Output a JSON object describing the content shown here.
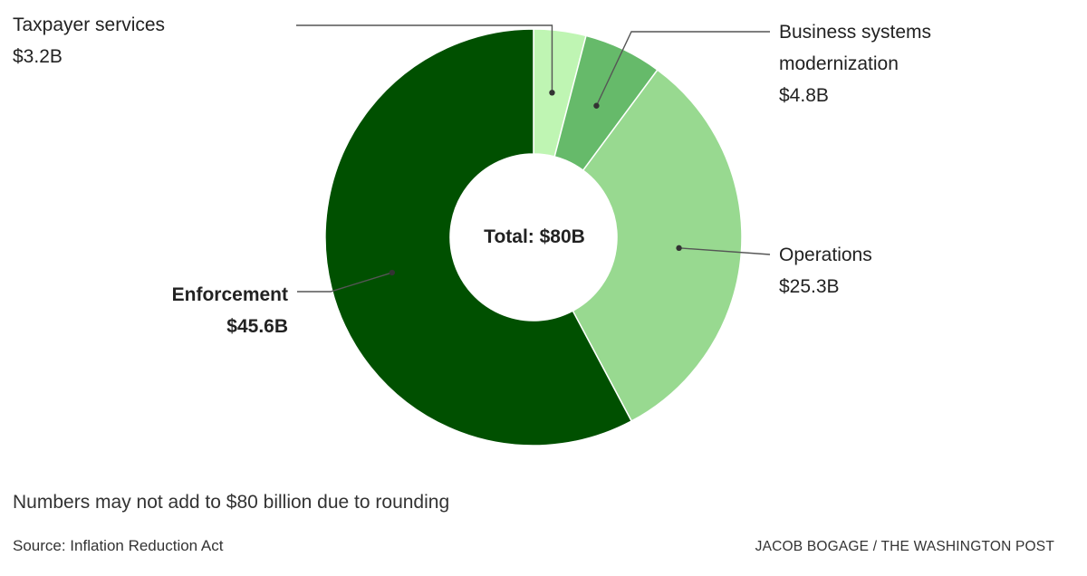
{
  "chart_data": {
    "type": "pie",
    "donut": true,
    "center_label": "Total: $80B",
    "total": 80,
    "unit": "billion USD",
    "slices": [
      {
        "name": "Taxpayer services",
        "value": 3.2,
        "value_label": "$3.2B",
        "color": "#bff5b3"
      },
      {
        "name": "Business systems modernization",
        "value": 4.8,
        "value_label": "$4.8B",
        "color": "#66ba6a"
      },
      {
        "name": "Operations",
        "value": 25.3,
        "value_label": "$25.3B",
        "color": "#98d990"
      },
      {
        "name": "Enforcement",
        "value": 45.6,
        "value_label": "$45.6B",
        "color": "#005000"
      }
    ],
    "labels": {
      "taxpayer": {
        "line1": "Taxpayer services",
        "line2": "$3.2B"
      },
      "business": {
        "line1": "Business systems",
        "line2": "modernization",
        "line3": "$4.8B"
      },
      "operations": {
        "line1": "Operations",
        "line2": "$25.3B"
      },
      "enforcement": {
        "line1": "Enforcement",
        "line2": "$45.6B"
      }
    },
    "footnote": "Numbers may not add to $80 billion due to rounding",
    "source": "Source: Inflation Reduction Act",
    "credit": "JACOB BOGAGE / THE WASHINGTON POST"
  }
}
